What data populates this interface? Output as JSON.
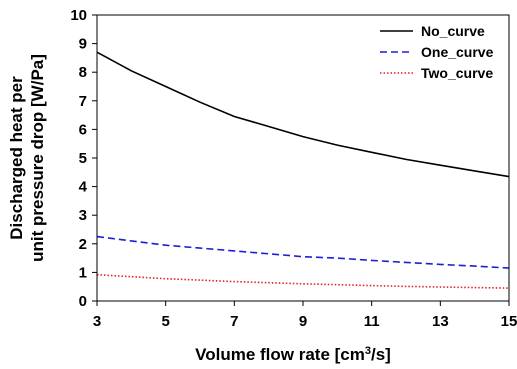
{
  "chart_data": {
    "type": "line",
    "xlabel": "Volume flow rate [cm",
    "xlabel_sup": "3",
    "xlabel_end": "/s]",
    "ylabel_line1": "Discharged heat per",
    "ylabel_line2": "unit pressure drop [W/Pa]",
    "xlim": [
      3,
      15
    ],
    "ylim": [
      0,
      10
    ],
    "x_ticks": [
      "3",
      "5",
      "7",
      "9",
      "11",
      "13",
      "15"
    ],
    "y_ticks": [
      "0",
      "1",
      "2",
      "3",
      "4",
      "5",
      "6",
      "7",
      "8",
      "9",
      "10"
    ],
    "grid": false,
    "legend_position": "top-right",
    "series": [
      {
        "name": "No_curve",
        "color": "#000000",
        "style": "solid",
        "x": [
          3,
          4,
          5,
          6,
          7,
          8,
          9,
          10,
          11,
          12,
          13,
          14,
          15
        ],
        "y": [
          8.7,
          8.05,
          7.5,
          6.95,
          6.45,
          6.1,
          5.75,
          5.45,
          5.2,
          4.95,
          4.75,
          4.55,
          4.35
        ]
      },
      {
        "name": "One_curve",
        "color": "#1f1fd6",
        "style": "dashed",
        "x": [
          3,
          4,
          5,
          6,
          7,
          8,
          9,
          10,
          11,
          12,
          13,
          14,
          15
        ],
        "y": [
          2.25,
          2.1,
          1.95,
          1.85,
          1.75,
          1.65,
          1.55,
          1.5,
          1.42,
          1.35,
          1.28,
          1.22,
          1.15
        ]
      },
      {
        "name": "Two_curve",
        "color": "#e02020",
        "style": "dotted",
        "x": [
          3,
          4,
          5,
          6,
          7,
          8,
          9,
          10,
          11,
          12,
          13,
          14,
          15
        ],
        "y": [
          0.92,
          0.85,
          0.78,
          0.73,
          0.68,
          0.64,
          0.6,
          0.57,
          0.54,
          0.51,
          0.49,
          0.47,
          0.45
        ]
      }
    ]
  }
}
